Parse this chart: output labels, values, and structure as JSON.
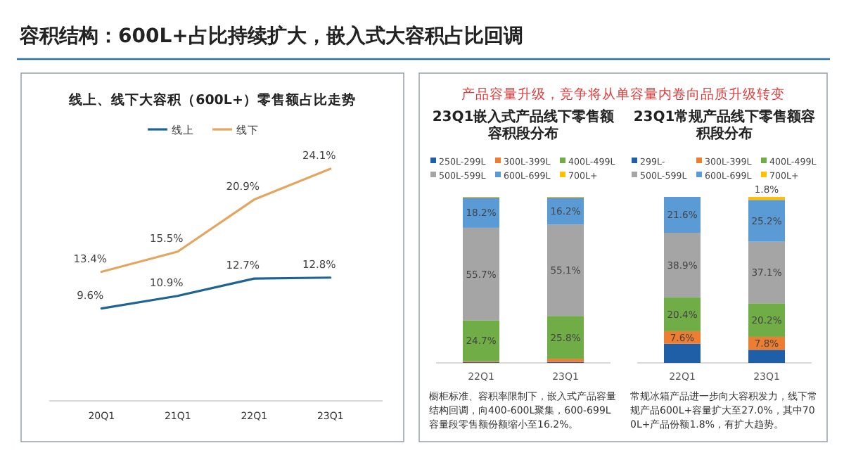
{
  "chart_data": [
    {
      "type": "line",
      "title": "线上、线下大容积（600L+）零售额占比走势",
      "annotations": [
        "容积结构：600L+占比持续扩大，嵌入式大容积占比回调"
      ],
      "categories": [
        "20Q1",
        "21Q1",
        "22Q1",
        "23Q1"
      ],
      "legend": "top",
      "marker": "none",
      "line_style": "solid",
      "series": [
        {
          "name": "线上",
          "color": "#1f6391",
          "values": [
            9.6,
            10.9,
            12.7,
            12.8
          ],
          "value_labels": [
            "9.6%",
            "10.9%",
            "12.7%",
            "12.8%"
          ]
        },
        {
          "name": "线下",
          "color": "#e3a661",
          "values": [
            13.4,
            15.5,
            20.9,
            24.1
          ],
          "value_labels": [
            "13.4%",
            "15.5%",
            "20.9%",
            "24.1%"
          ]
        }
      ]
    },
    {
      "type": "bar",
      "stacked": true,
      "title": "23Q1嵌入式产品线下零售额容积段分布",
      "annotations": [
        "产品容量升级，竞争将从单容量内卷向品质升级转变",
        "橱柜标准、容积率限制下，嵌入式产品容量结构回调，向400-600L聚集，600-699L容量段零售额份额缩小至16.2%。"
      ],
      "categories": [
        "22Q1",
        "23Q1"
      ],
      "legend": "top",
      "series": [
        {
          "name": "250L-299L",
          "color": "#1f5fa8",
          "values": [
            0.4,
            0.5
          ],
          "value_labels": [
            null,
            null
          ]
        },
        {
          "name": "300L-399L",
          "color": "#ed7d31",
          "values": [
            0.6,
            2.0
          ],
          "value_labels": [
            null,
            null
          ]
        },
        {
          "name": "400L-499L",
          "color": "#70ad47",
          "values": [
            24.7,
            25.8
          ],
          "value_labels": [
            "24.7%",
            "25.8%"
          ]
        },
        {
          "name": "500L-599L",
          "color": "#a5a5a5",
          "values": [
            55.7,
            55.1
          ],
          "value_labels": [
            "55.7%",
            "55.1%"
          ]
        },
        {
          "name": "600L-699L",
          "color": "#5b9bd5",
          "values": [
            18.2,
            16.2
          ],
          "value_labels": [
            "18.2%",
            "16.2%"
          ]
        },
        {
          "name": "700L+",
          "color": "#ffc000",
          "values": [
            0.4,
            0.4
          ],
          "value_labels": [
            null,
            null
          ]
        }
      ]
    },
    {
      "type": "bar",
      "stacked": true,
      "title": "23Q1常规产品线下零售额容积段分布",
      "annotations": [
        "常规冰箱产品进一步向大容积发力，线下常规产品600L+容量扩大至27.0%，其中700L+产品份额1.8%，有扩大趋势。"
      ],
      "categories": [
        "22Q1",
        "23Q1"
      ],
      "legend": "top",
      "series": [
        {
          "name": "299L-",
          "color": "#1f5fa8",
          "values": [
            11.5,
            7.9
          ],
          "value_labels": [
            null,
            null
          ]
        },
        {
          "name": "300L-399L",
          "color": "#ed7d31",
          "values": [
            7.6,
            7.8
          ],
          "value_labels": [
            "7.6%",
            "7.8%"
          ]
        },
        {
          "name": "400L-499L",
          "color": "#70ad47",
          "values": [
            20.4,
            20.2
          ],
          "value_labels": [
            "20.4%",
            "20.2%"
          ]
        },
        {
          "name": "500L-599L",
          "color": "#a5a5a5",
          "values": [
            38.9,
            37.1
          ],
          "value_labels": [
            "38.9%",
            "37.1%"
          ]
        },
        {
          "name": "600L-699L",
          "color": "#5b9bd5",
          "values": [
            21.6,
            25.2
          ],
          "value_labels": [
            "21.6%",
            "25.2%"
          ]
        },
        {
          "name": "700L+",
          "color": "#ffc000",
          "values": [
            0,
            1.8
          ],
          "value_labels": [
            null,
            "1.8%"
          ]
        }
      ]
    }
  ]
}
